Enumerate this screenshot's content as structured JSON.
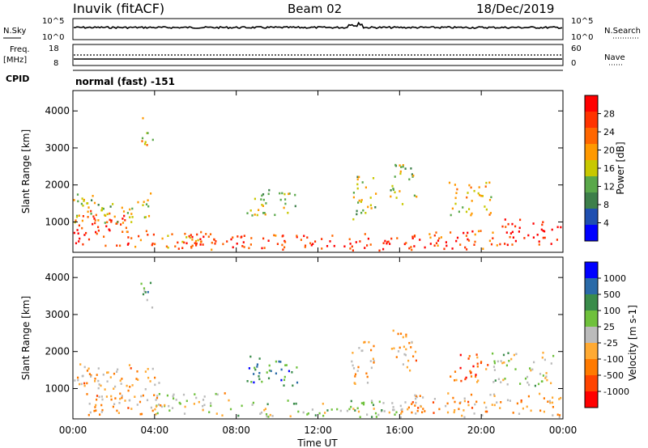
{
  "header": {
    "station": "Inuvik (fitACF)",
    "beam": "Beam 02",
    "date": "18/Dec/2019"
  },
  "noise_panel": {
    "left_label": "N.Sky",
    "right_label": "N.Search",
    "left_ticks": [
      "10^5",
      "10^0"
    ],
    "right_ticks": [
      "10^5",
      "10^0"
    ]
  },
  "freq_panel": {
    "left_label_1": "Freq.",
    "left_label_2": "[MHz]",
    "right_label": "Nave",
    "left_ticks": [
      "18",
      "8"
    ],
    "right_ticks": [
      "60",
      "0"
    ]
  },
  "cpid_panel": {
    "label": "CPID",
    "text": "normal (fast) -151"
  },
  "x_axis": {
    "ticks": [
      "00:00",
      "04:00",
      "08:00",
      "12:00",
      "16:00",
      "20:00",
      "00:00"
    ],
    "label": "Time UT"
  },
  "colors": {
    "power_scale": [
      "#0000ff",
      "#1f4fb0",
      "#3d7f4a",
      "#5aa84a",
      "#c8c800",
      "#ff9900",
      "#ff6600",
      "#ff3300",
      "#ff0000"
    ],
    "velocity_scale": [
      "#ff0000",
      "#ff4400",
      "#ff7a00",
      "#ffaa33",
      "#bbbbbb",
      "#6fc13c",
      "#3a8c4a",
      "#2a6aa8",
      "#0000ff"
    ]
  },
  "chart_data": [
    {
      "type": "heatmap",
      "title": "",
      "ylabel": "Slant Range [km]",
      "xlabel": "",
      "ylim": [
        180,
        4550
      ],
      "yticks": [
        "1000",
        "2000",
        "3000",
        "4000"
      ],
      "colorbar": {
        "label": "Power [dB]",
        "ticks": [
          "4",
          "8",
          "12",
          "16",
          "20",
          "24",
          "28"
        ]
      },
      "regions": [
        {
          "t0": 0.0,
          "t1": 2.7,
          "r0": 350,
          "r1": 1350,
          "value": 27
        },
        {
          "t0": 0.0,
          "t1": 3.8,
          "r0": 1000,
          "r1": 1800,
          "value": 16
        },
        {
          "t0": 2.5,
          "t1": 6.5,
          "r0": 300,
          "r1": 800,
          "value": 22
        },
        {
          "t0": 5.0,
          "t1": 10.5,
          "r0": 250,
          "r1": 700,
          "value": 26
        },
        {
          "t0": 8.5,
          "t1": 11.0,
          "r0": 1200,
          "r1": 1900,
          "value": 14
        },
        {
          "t0": 10.0,
          "t1": 17.0,
          "r0": 250,
          "r1": 700,
          "value": 27
        },
        {
          "t0": 13.6,
          "t1": 14.8,
          "r0": 1100,
          "r1": 2300,
          "value": 15
        },
        {
          "t0": 15.5,
          "t1": 16.8,
          "r0": 1500,
          "r1": 2600,
          "value": 14
        },
        {
          "t0": 17.0,
          "t1": 21.0,
          "r0": 250,
          "r1": 800,
          "value": 25
        },
        {
          "t0": 18.4,
          "t1": 20.5,
          "r0": 1200,
          "r1": 2100,
          "value": 18
        },
        {
          "t0": 21.0,
          "t1": 24.0,
          "r0": 400,
          "r1": 1100,
          "value": 28
        },
        {
          "t0": 3.3,
          "t1": 3.9,
          "r0": 3100,
          "r1": 3900,
          "value": 18
        }
      ]
    },
    {
      "type": "heatmap",
      "title": "",
      "ylabel": "Slant Range [km]",
      "xlabel": "Time UT",
      "ylim": [
        180,
        4550
      ],
      "yticks": [
        "1000",
        "2000",
        "3000",
        "4000"
      ],
      "colorbar": {
        "label": "Velocity [m s-1]",
        "ticks": [
          "1000",
          "500",
          "100",
          "25",
          "-25",
          "-100",
          "-500",
          "-1000"
        ]
      },
      "regions": [
        {
          "t0": 0.0,
          "t1": 4.2,
          "r0": 300,
          "r1": 1700,
          "value": -300
        },
        {
          "t0": 4.0,
          "t1": 8.0,
          "r0": 300,
          "r1": 900,
          "value": 0
        },
        {
          "t0": 8.5,
          "t1": 11.0,
          "r0": 1100,
          "r1": 1900,
          "value": 600
        },
        {
          "t0": 8.0,
          "t1": 16.0,
          "r0": 250,
          "r1": 700,
          "value": 150
        },
        {
          "t0": 13.6,
          "t1": 14.8,
          "r0": 1100,
          "r1": 2300,
          "value": -200
        },
        {
          "t0": 15.5,
          "t1": 16.8,
          "r0": 1500,
          "r1": 2600,
          "value": -400
        },
        {
          "t0": 16.0,
          "t1": 24.0,
          "r0": 250,
          "r1": 900,
          "value": -300
        },
        {
          "t0": 18.4,
          "t1": 20.3,
          "r0": 1200,
          "r1": 2000,
          "value": -600
        },
        {
          "t0": 20.5,
          "t1": 23.5,
          "r0": 1100,
          "r1": 2000,
          "value": 0
        },
        {
          "t0": 3.3,
          "t1": 3.9,
          "r0": 3100,
          "r1": 3900,
          "value": 300
        }
      ]
    }
  ]
}
